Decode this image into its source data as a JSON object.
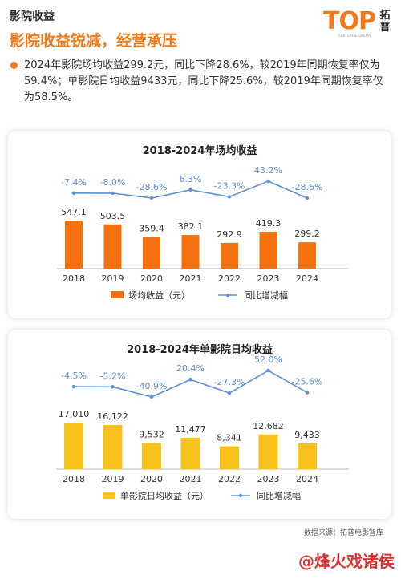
{
  "header": {
    "section_label": "影院收益",
    "headline": "影院收益锐减，经营承压"
  },
  "brand": {
    "logo": "TOP",
    "name": "拓普",
    "tagline": "CENTURY & CINEMA"
  },
  "summary": "2024年影院场均收益299.2元，同比下降28.6%，较2019年同期恢复率仅为59.4%；单影院日均收益9433元，同比下降25.6%，较2019年同期恢复率仅为58.5%。",
  "chart_data": [
    {
      "type": "bar",
      "title": "2018-2024年场均收益",
      "categories": [
        "2018",
        "2019",
        "2020",
        "2021",
        "2022",
        "2023",
        "2024"
      ],
      "series": [
        {
          "name": "场均收益（元）",
          "values": [
            547.1,
            503.5,
            359.4,
            382.1,
            292.9,
            419.3,
            299.2
          ],
          "labels": [
            "547.1",
            "503.5",
            "359.4",
            "382.1",
            "292.9",
            "419.3",
            "299.2"
          ],
          "color": "#f5700f"
        },
        {
          "name": "同比增减幅",
          "type": "line",
          "values": [
            -7.4,
            -8.0,
            -28.6,
            6.3,
            -23.3,
            43.2,
            -28.6
          ],
          "labels": [
            "-7.4%",
            "-8.0%",
            "-28.6%",
            "6.3%",
            "-23.3%",
            "43.2%",
            "-28.6%"
          ],
          "color": "#5b8fd6"
        }
      ],
      "legend_position": "bottom"
    },
    {
      "type": "bar",
      "title": "2018-2024年单影院日均收益",
      "categories": [
        "2018",
        "2019",
        "2020",
        "2021",
        "2022",
        "2023",
        "2024"
      ],
      "series": [
        {
          "name": "单影院日均收益（元）",
          "values": [
            17010,
            16122,
            9532,
            11477,
            8341,
            12682,
            9433
          ],
          "labels": [
            "17,010",
            "16,122",
            "9,532",
            "11,477",
            "8,341",
            "12,682",
            "9,433"
          ],
          "color": "#f7c21b"
        },
        {
          "name": "同比增减幅",
          "type": "line",
          "values": [
            -4.5,
            -5.2,
            -40.9,
            20.4,
            -27.3,
            52.0,
            -25.6
          ],
          "labels": [
            "-4.5%",
            "-5.2%",
            "-40.9%",
            "20.4%",
            "-27.3%",
            "52.0%",
            "-25.6%"
          ],
          "color": "#5b8fd6"
        }
      ],
      "legend_position": "bottom"
    }
  ],
  "source": "数据来源：拓普电影智库",
  "watermark": "@烽火戏诸侯"
}
